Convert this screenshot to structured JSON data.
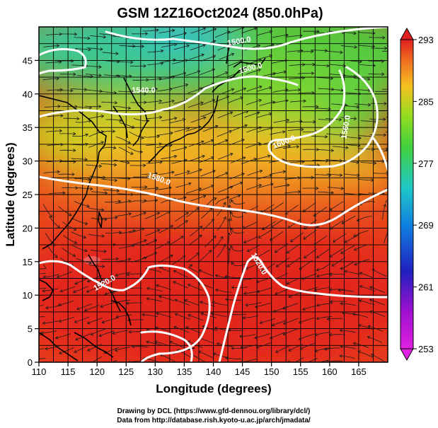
{
  "title": "GSM 12Z16Oct2024 (850.0hPa)",
  "x_axis": {
    "label": "Longitude (degrees)",
    "range": [
      110,
      170
    ],
    "ticks": [
      110,
      115,
      120,
      125,
      130,
      135,
      140,
      145,
      150,
      155,
      160,
      165
    ]
  },
  "y_axis": {
    "label": "Latitude  (degrees)",
    "range": [
      0,
      50
    ],
    "ticks": [
      0,
      5,
      10,
      15,
      20,
      25,
      30,
      35,
      40,
      45
    ]
  },
  "colorbar": {
    "min": 253,
    "max": 293,
    "tick_labels": [
      "293",
      "285",
      "277",
      "269",
      "261",
      "253"
    ],
    "tick_values": [
      293,
      285,
      277,
      269,
      261,
      253
    ]
  },
  "contour_labels": [
    {
      "text": "1500.0",
      "lon": 144.5,
      "lat": 47.5,
      "angle": -10
    },
    {
      "text": "1500.0",
      "lon": 146.5,
      "lat": 43.5,
      "angle": -15
    },
    {
      "text": "1540.0",
      "lon": 128.0,
      "lat": 40.2,
      "angle": 0
    },
    {
      "text": "1560.0",
      "lon": 163.2,
      "lat": 35.0,
      "angle": -80
    },
    {
      "text": "1600.0",
      "lon": 152.3,
      "lat": 32.5,
      "angle": -22
    },
    {
      "text": "1580.0",
      "lon": 130.5,
      "lat": 27.0,
      "angle": 20
    },
    {
      "text": "1520.0",
      "lon": 147.5,
      "lat": 14.5,
      "angle": 60
    },
    {
      "text": "1520.0",
      "lon": 121.5,
      "lat": 11.5,
      "angle": -30
    }
  ],
  "credits": {
    "line1": "Drawing by DCL (https://www.gfd-dennou.org/library/dcl/)",
    "line2": "Data from http://database.rish.kyoto-u.ac.jp/arch/jmadata/"
  },
  "colors": {
    "warm": "#e8401c",
    "hot": "#e51f13",
    "mid": "#f5c020",
    "green": "#5ad23c",
    "cyan": "#2cc9c9",
    "contour": "#ffffff",
    "coast": "#000000"
  }
}
